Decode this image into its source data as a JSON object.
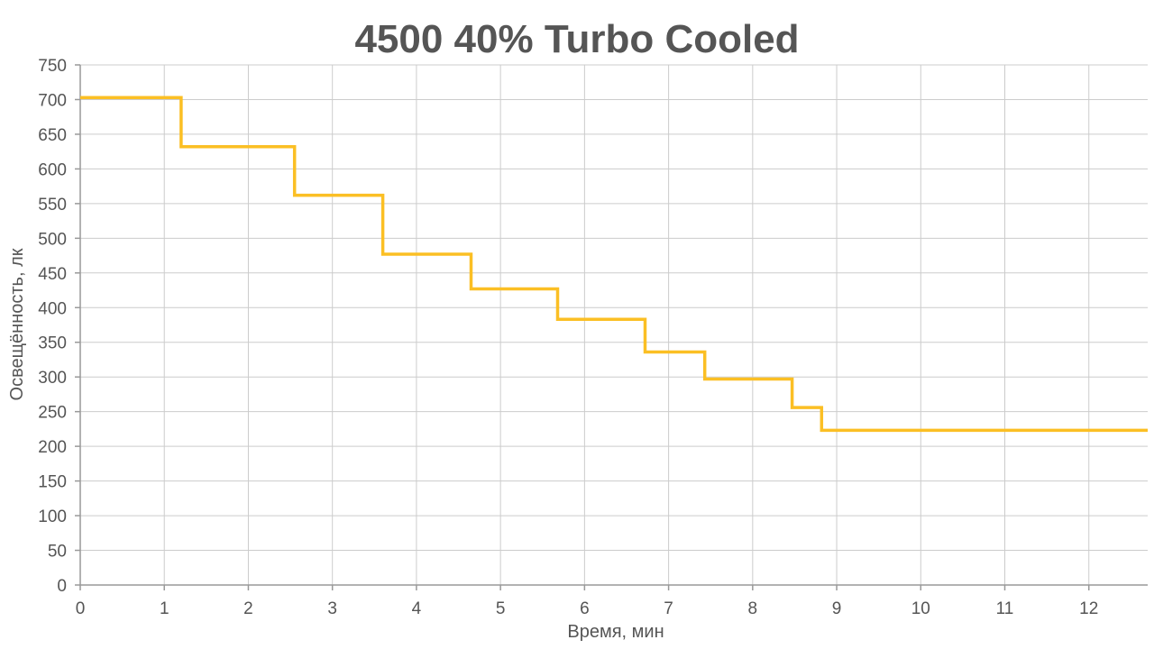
{
  "chart_data": {
    "type": "line",
    "step": true,
    "title": "4500 40% Turbo Cooled",
    "xlabel": "Время, мин",
    "ylabel": "Освещённость, лк",
    "xlim": [
      0,
      12.7
    ],
    "ylim": [
      0,
      750
    ],
    "xticks": [
      "0",
      "1",
      "2",
      "3",
      "4",
      "5",
      "6",
      "7",
      "8",
      "9",
      "10",
      "11",
      "12"
    ],
    "yticks": [
      "0",
      "50",
      "100",
      "150",
      "200",
      "250",
      "300",
      "350",
      "400",
      "450",
      "500",
      "550",
      "600",
      "650",
      "700",
      "750"
    ],
    "grid": true,
    "series": [
      {
        "color": "#FBBF24",
        "x": [
          0,
          1.2,
          1.2,
          2.55,
          2.55,
          3.6,
          3.6,
          4.65,
          4.65,
          5.68,
          5.68,
          6.72,
          6.72,
          7.43,
          7.43,
          8.47,
          8.47,
          8.82,
          8.82,
          12.7
        ],
        "y": [
          703,
          703,
          632,
          632,
          562,
          562,
          477,
          477,
          427,
          427,
          383,
          383,
          336,
          336,
          297,
          297,
          256,
          256,
          223,
          223
        ]
      }
    ]
  }
}
